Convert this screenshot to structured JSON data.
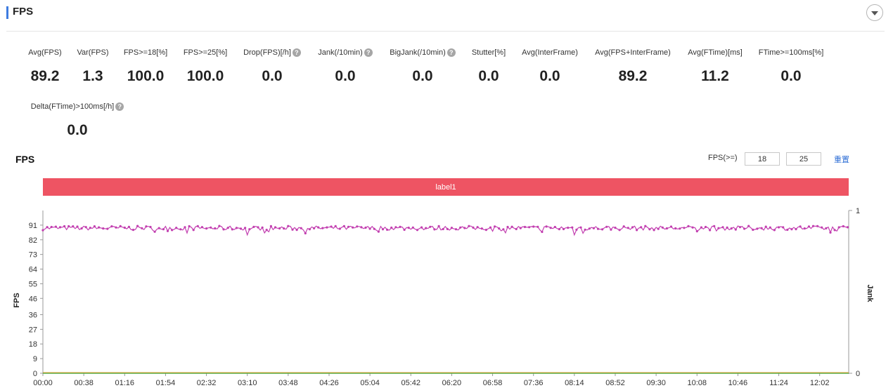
{
  "header": {
    "title": "FPS"
  },
  "metrics": [
    {
      "label": "Avg(FPS)",
      "value": "89.2",
      "help": false
    },
    {
      "label": "Var(FPS)",
      "value": "1.3",
      "help": false
    },
    {
      "label": "FPS>=18[%]",
      "value": "100.0",
      "help": false
    },
    {
      "label": "FPS>=25[%]",
      "value": "100.0",
      "help": false
    },
    {
      "label": "Drop(FPS)[/h]",
      "value": "0.0",
      "help": true
    },
    {
      "label": "Jank(/10min)",
      "value": "0.0",
      "help": true
    },
    {
      "label": "BigJank(/10min)",
      "value": "0.0",
      "help": true
    },
    {
      "label": "Stutter[%]",
      "value": "0.0",
      "help": false
    },
    {
      "label": "Avg(InterFrame)",
      "value": "0.0",
      "help": false
    },
    {
      "label": "Avg(FPS+InterFrame)",
      "value": "89.2",
      "help": false
    },
    {
      "label": "Avg(FTime)[ms]",
      "value": "11.2",
      "help": false
    },
    {
      "label": "FTime>=100ms[%]",
      "value": "0.0",
      "help": false
    },
    {
      "label": "Delta(FTime)>100ms[/h]",
      "value": "0.0",
      "help": true
    }
  ],
  "help_glyph": "?",
  "chart_section": {
    "title": "FPS",
    "threshold_label": "FPS(>=)",
    "threshold_low": "18",
    "threshold_high": "25",
    "reset_label": "重置",
    "band_label": "label1",
    "band_color": "#ee5463"
  },
  "chart_data": {
    "type": "line",
    "ylabel": "FPS",
    "ylabel_right": "Jank",
    "y_ticks": [
      "0",
      "9",
      "18",
      "27",
      "36",
      "46",
      "55",
      "64",
      "73",
      "82",
      "91"
    ],
    "y_range": [
      0,
      100
    ],
    "y_right_ticks": [
      "0",
      "1"
    ],
    "y_right_range": [
      0,
      1
    ],
    "x_ticks": [
      "00:00",
      "00:38",
      "01:16",
      "01:54",
      "02:32",
      "03:10",
      "03:48",
      "04:26",
      "05:04",
      "05:42",
      "06:20",
      "06:58",
      "07:36",
      "08:14",
      "08:52",
      "09:30",
      "10:08",
      "10:46",
      "11:24",
      "12:02"
    ],
    "x_range_seconds": [
      0,
      749
    ],
    "series": [
      {
        "name": "FPS",
        "color": "#c23fb0",
        "mean": 89.2,
        "min": 85,
        "max": 91,
        "dips": [
          {
            "t": "03:10",
            "value": 85
          },
          {
            "t": "08:14",
            "value": 85
          },
          {
            "t": "08:22",
            "value": 86
          }
        ]
      },
      {
        "name": "",
        "color": "#4caf50",
        "constant": 0
      },
      {
        "name": "",
        "color": "#e0a030",
        "constant": 0
      }
    ],
    "colors": {
      "grid": "#e5e5e5",
      "axis": "#999999"
    }
  }
}
